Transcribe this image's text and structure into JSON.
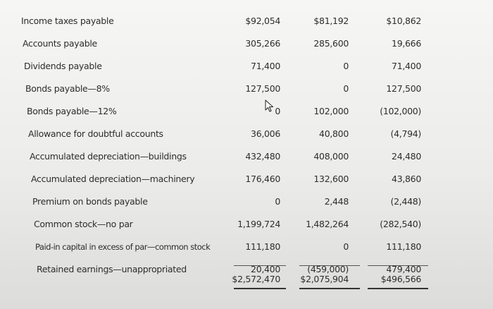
{
  "rows": [
    {
      "label": "Income taxes payable",
      "v1": "$92,054",
      "v2": "$81,192",
      "v3": "$10,862"
    },
    {
      "label": "Accounts payable",
      "v1": "305,266",
      "v2": "285,600",
      "v3": "19,666"
    },
    {
      "label": "Dividends payable",
      "v1": "71,400",
      "v2": "0",
      "v3": "71,400"
    },
    {
      "label": "Bonds payable—8%",
      "v1": "127,500",
      "v2": "0",
      "v3": "127,500"
    },
    {
      "label": "Bonds payable—12%",
      "v1": "0",
      "v2": "102,000",
      "v3": "(102,000)"
    },
    {
      "label": "Allowance for doubtful accounts",
      "v1": "36,006",
      "v2": "40,800",
      "v3": "(4,794)"
    },
    {
      "label": "Accumulated depreciation—buildings",
      "v1": "432,480",
      "v2": "408,000",
      "v3": "24,480"
    },
    {
      "label": "Accumulated depreciation—machinery",
      "v1": "176,460",
      "v2": "132,600",
      "v3": "43,860"
    },
    {
      "label": "Premium on bonds payable",
      "v1": "0",
      "v2": "2,448",
      "v3": "(2,448)"
    },
    {
      "label": "Common stock—no par",
      "v1": "1,199,724",
      "v2": "1,482,264",
      "v3": "(282,540)"
    },
    {
      "label": "Paid-in capital in excess of par—common stock",
      "v1": "111,180",
      "v2": "0",
      "v3": "111,180"
    },
    {
      "label": "Retained earnings—unappropriated",
      "v1": "20,400",
      "v2": "(459,000)",
      "v3": "479,400"
    }
  ],
  "totals": {
    "v1": "$2,572,470",
    "v2": "$2,075,904",
    "v3": "$496,566"
  }
}
